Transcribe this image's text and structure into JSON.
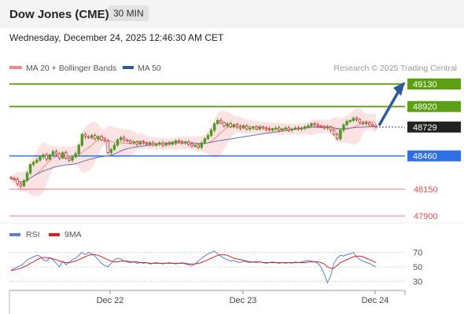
{
  "header": {
    "title": "Dow Jones (CME)",
    "timeframe": "30 MIN",
    "datetime": "Wednesday, December 24, 2025 12:46:30 AM CET"
  },
  "legend": {
    "items": [
      {
        "label": "MA 20 + Bollinger Bands",
        "color": "#f28b8b"
      },
      {
        "label": "MA 50",
        "color": "#2c5b97"
      }
    ],
    "credit": "Research © 2025 Trading Central"
  },
  "colors": {
    "resistance": "#5aa012",
    "support_blue": "#2f6fe6",
    "support_red": "#e05050",
    "bull": "#4f9a22",
    "bear": "#cc3333",
    "arrow": "#2c5b97",
    "ma50": "#6a7fb0",
    "ma20": "#f28b8b",
    "bands": "#fbe3e3",
    "rsi": "#5a7ed0",
    "rsi_ma": "#e02020",
    "current_bg": "#222222"
  },
  "chart_data": {
    "type": "candlestick",
    "instrument": "Dow Jones (CME)",
    "timeframe": "30 MIN",
    "x_ticks": [
      "Dec 22",
      "Dec 23",
      "Dec 24"
    ],
    "current_price": "48729",
    "forecast_arrow": {
      "from": 48729,
      "to": 49130
    },
    "levels": [
      {
        "value": 49130,
        "label": "49130",
        "type": "resistance"
      },
      {
        "value": 48920,
        "label": "48920",
        "type": "resistance"
      },
      {
        "value": 48460,
        "label": "48460",
        "type": "pivot"
      },
      {
        "value": 48150,
        "label": "48150",
        "type": "support"
      },
      {
        "value": 47900,
        "label": "47900",
        "type": "support"
      }
    ],
    "price_path_close": [
      48250,
      48240,
      48200,
      48180,
      48230,
      48300,
      48380,
      48400,
      48420,
      48450,
      48470,
      48430,
      48470,
      48500,
      48480,
      48440,
      48490,
      48440,
      48420,
      48450,
      48480,
      48560,
      48660,
      48640,
      48630,
      48650,
      48620,
      48640,
      48610,
      48600,
      48490,
      48520,
      48560,
      48610,
      48630,
      48610,
      48600,
      48580,
      48590,
      48570,
      48590,
      48580,
      48570,
      48580,
      48560,
      48570,
      48580,
      48560,
      48580,
      48570,
      48580,
      48600,
      48590,
      48580,
      48590,
      48570,
      48550,
      48560,
      48540,
      48580,
      48620,
      48650,
      48700,
      48760,
      48790,
      48770,
      48740,
      48760,
      48730,
      48750,
      48730,
      48720,
      48740,
      48710,
      48720,
      48730,
      48710,
      48730,
      48720,
      48710,
      48700,
      48710,
      48720,
      48700,
      48710,
      48720,
      48700,
      48710,
      48720,
      48710,
      48720,
      48730,
      48740,
      48760,
      48750,
      48740,
      48730,
      48720,
      48730,
      48700,
      48660,
      48620,
      48700,
      48750,
      48780,
      48790,
      48810,
      48800,
      48770,
      48760,
      48770,
      48750,
      48740,
      48729
    ],
    "rsi_ticks": [
      70,
      50,
      30
    ],
    "rsi": [
      45,
      48,
      50,
      52,
      55,
      60,
      62,
      64,
      66,
      65,
      60,
      58,
      63,
      60,
      55,
      50,
      58,
      53,
      56,
      60,
      62,
      66,
      70,
      67,
      70,
      68,
      65,
      60,
      55,
      52,
      50,
      55,
      60,
      62,
      61,
      58,
      57,
      56,
      57,
      55,
      56,
      55,
      56,
      54,
      55,
      56,
      55,
      54,
      55,
      56,
      55,
      54,
      55,
      56,
      54,
      53,
      52,
      54,
      58,
      62,
      65,
      68,
      70,
      72,
      68,
      65,
      62,
      60,
      58,
      59,
      57,
      56,
      58,
      57,
      56,
      57,
      56,
      57,
      56,
      55,
      56,
      57,
      56,
      55,
      56,
      55,
      56,
      55,
      57,
      56,
      57,
      58,
      59,
      58,
      57,
      55,
      50,
      40,
      28,
      38,
      55,
      62,
      66,
      65,
      67,
      68,
      70,
      64,
      60,
      58,
      56,
      55,
      52,
      50
    ],
    "rsi_9ma": [
      45,
      46,
      47,
      48,
      50,
      52,
      55,
      57,
      60,
      62,
      63,
      63,
      62,
      61,
      60,
      58,
      57,
      56,
      56,
      57,
      58,
      60,
      62,
      64,
      66,
      67,
      67,
      66,
      64,
      62,
      60,
      58,
      57,
      57,
      58,
      58,
      58,
      57,
      57,
      57,
      56,
      56,
      56,
      55,
      55,
      55,
      55,
      55,
      55,
      55,
      55,
      55,
      55,
      55,
      55,
      54,
      54,
      54,
      55,
      56,
      58,
      60,
      62,
      64,
      66,
      67,
      67,
      66,
      64,
      62,
      61,
      60,
      59,
      58,
      57,
      57,
      57,
      57,
      56,
      56,
      56,
      56,
      56,
      56,
      56,
      56,
      56,
      56,
      56,
      56,
      56,
      56,
      57,
      57,
      57,
      57,
      56,
      54,
      50,
      48,
      48,
      52,
      56,
      58,
      60,
      62,
      64,
      65,
      65,
      64,
      62,
      60,
      58,
      56
    ]
  }
}
